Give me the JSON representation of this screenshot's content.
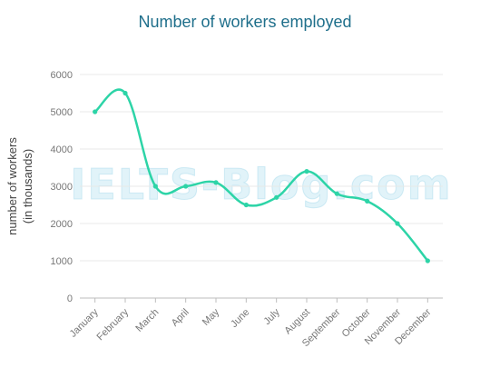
{
  "chart_data": {
    "type": "line",
    "title": "Number of workers employed",
    "ylabel": "number of workers",
    "ylabel_unit": "(in thousands)",
    "categories": [
      "January",
      "February",
      "March",
      "April",
      "May",
      "June",
      "July",
      "August",
      "September",
      "October",
      "November",
      "December"
    ],
    "series": [
      {
        "values": [
          5000,
          5500,
          3000,
          3000,
          3100,
          2500,
          2700,
          3400,
          2800,
          2600,
          2000,
          1000
        ]
      }
    ],
    "ylim": [
      0,
      6000
    ],
    "yticks": [
      "0",
      "1000",
      "2000",
      "3000",
      "4000",
      "5000",
      "6000"
    ],
    "grid": true,
    "line_color": "#2dd4a7",
    "title_color": "#1f6f8b",
    "watermark": "IELTS-Blog.com"
  }
}
